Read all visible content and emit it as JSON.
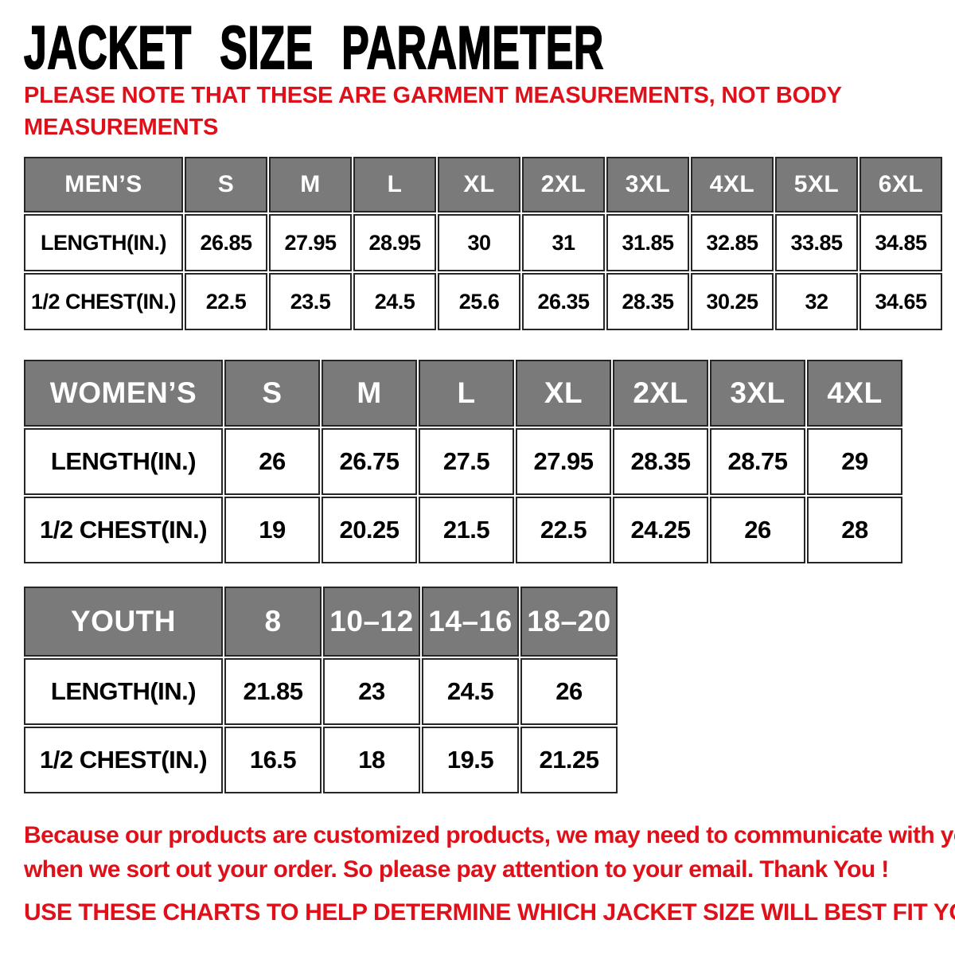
{
  "title": "JACKET SIZE PARAMETER",
  "note_lines": [
    "PLEASE NOTE THAT THESE ARE GARMENT MEASUREMENTS, NOT BODY",
    "MEASUREMENTS"
  ],
  "chart_data": [
    {
      "type": "table",
      "title": "MEN’S",
      "columns": [
        "MEN’S",
        "S",
        "M",
        "L",
        "XL",
        "2XL",
        "3XL",
        "4XL",
        "5XL",
        "6XL"
      ],
      "rows": [
        {
          "label": "LENGTH(IN.)",
          "values": [
            "26.85",
            "27.95",
            "28.95",
            "30",
            "31",
            "31.85",
            "32.85",
            "33.85",
            "34.85"
          ]
        },
        {
          "label": "1/2 CHEST(IN.)",
          "values": [
            "22.5",
            "23.5",
            "24.5",
            "25.6",
            "26.35",
            "28.35",
            "30.25",
            "32",
            "34.65"
          ]
        }
      ]
    },
    {
      "type": "table",
      "title": "WOMEN’S",
      "columns": [
        "WOMEN’S",
        "S",
        "M",
        "L",
        "XL",
        "2XL",
        "3XL",
        "4XL"
      ],
      "rows": [
        {
          "label": "LENGTH(IN.)",
          "values": [
            "26",
            "26.75",
            "27.5",
            "27.95",
            "28.35",
            "28.75",
            "29"
          ]
        },
        {
          "label": "1/2 CHEST(IN.)",
          "values": [
            "19",
            "20.25",
            "21.5",
            "22.5",
            "24.25",
            "26",
            "28"
          ]
        }
      ]
    },
    {
      "type": "table",
      "title": "YOUTH",
      "columns": [
        "YOUTH",
        "8",
        "10–12",
        "14–16",
        "18–20"
      ],
      "rows": [
        {
          "label": "LENGTH(IN.)",
          "values": [
            "21.85",
            "23",
            "24.5",
            "26"
          ]
        },
        {
          "label": "1/2 CHEST(IN.)",
          "values": [
            "16.5",
            "18",
            "19.5",
            "21.25"
          ]
        }
      ]
    }
  ],
  "footer": {
    "para_lines": [
      "Because our products are customized products, we may need to communicate with you",
      "when we sort out your order. So please pay attention to your email. Thank You !"
    ],
    "usage_line": "USE THESE CHARTS TO HELP DETERMINE WHICH JACKET SIZE WILL BEST FIT YOU."
  },
  "colors": {
    "accent_red": "#e0101a",
    "header_gray": "#7a7a7a",
    "border_dark": "#262626",
    "text_black": "#000000"
  }
}
